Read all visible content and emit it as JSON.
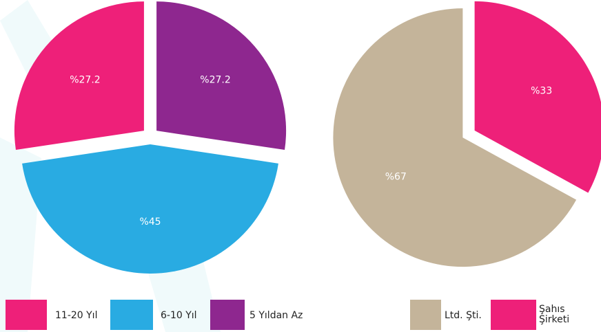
{
  "chart_data": [
    {
      "type": "pie",
      "categories": [
        "5 Yıldan Az",
        "6-10 Yıl",
        "11-20 Yıl"
      ],
      "values": [
        27.2,
        45,
        27.2
      ],
      "value_labels": [
        "%27.2",
        "%45",
        "%27.2"
      ],
      "colors": [
        "#8e278f",
        "#29abe2",
        "#ee2079"
      ]
    },
    {
      "type": "pie",
      "categories": [
        "Şahıs Şirketi",
        "Ltd. Şti."
      ],
      "values": [
        33,
        67
      ],
      "value_labels": [
        "%33",
        "%67"
      ],
      "colors": [
        "#ee2079",
        "#c4b49a"
      ]
    }
  ]
}
